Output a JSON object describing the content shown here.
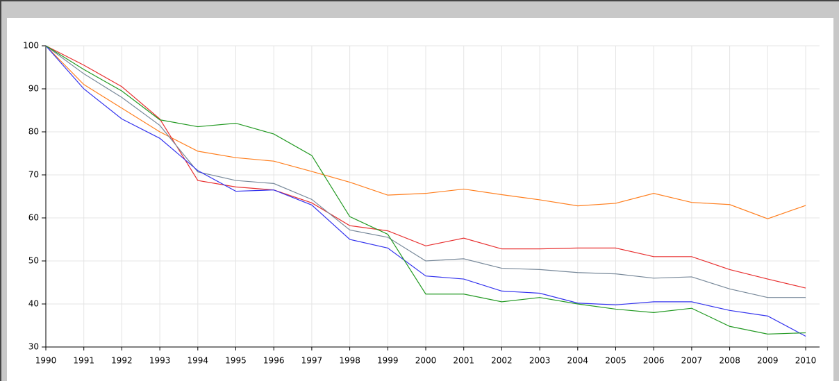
{
  "chart_data": {
    "type": "line",
    "x": [
      1990,
      1991,
      1992,
      1993,
      1994,
      1995,
      1996,
      1997,
      1998,
      1999,
      2000,
      2001,
      2002,
      2003,
      2004,
      2005,
      2006,
      2007,
      2008,
      2009,
      2010
    ],
    "series": [
      {
        "color": "#ff7f1f",
        "values": [
          100,
          91,
          85.5,
          80,
          75.5,
          74,
          73.2,
          70.8,
          68.3,
          65.3,
          65.7,
          66.7,
          65.4,
          64.2,
          62.8,
          63.4,
          65.7,
          63.6,
          63.1,
          59.8,
          62.9
        ]
      },
      {
        "color": "#e83030",
        "values": [
          100,
          95.5,
          90.5,
          83,
          68.7,
          67.2,
          66.5,
          63.5,
          58.2,
          57,
          53.5,
          55.3,
          52.8,
          52.8,
          53,
          53,
          51,
          51,
          48,
          45.8,
          43.7
        ]
      },
      {
        "color": "#778899",
        "values": [
          100,
          93.5,
          88,
          81.5,
          70.7,
          68.7,
          68,
          64.3,
          57.2,
          55.5,
          50,
          50.5,
          48.3,
          48,
          47.3,
          47,
          46,
          46.3,
          43.5,
          41.5,
          41.5
        ]
      },
      {
        "color": "#3333ee",
        "values": [
          100,
          90,
          83,
          78.5,
          71,
          66.2,
          66.5,
          63,
          55,
          53,
          46.5,
          45.8,
          43,
          42.5,
          40.2,
          39.8,
          40.5,
          40.5,
          38.5,
          37.2,
          32.5
        ]
      },
      {
        "color": "#229922",
        "values": [
          100,
          94.5,
          89.5,
          82.8,
          81.2,
          82,
          79.5,
          74.5,
          60.3,
          56.2,
          42.3,
          42.3,
          40.5,
          41.5,
          40,
          38.8,
          38,
          39,
          34.8,
          33,
          33.3
        ]
      }
    ],
    "xlim": [
      1990,
      2010
    ],
    "xticks": [
      1990,
      1991,
      1992,
      1993,
      1994,
      1995,
      1996,
      1997,
      1998,
      1999,
      2000,
      2001,
      2002,
      2003,
      2004,
      2005,
      2006,
      2007,
      2008,
      2009,
      2010
    ],
    "ylim": [
      30,
      100
    ],
    "yticks": [
      30,
      40,
      50,
      60,
      70,
      80,
      90,
      100
    ],
    "grid": true
  }
}
